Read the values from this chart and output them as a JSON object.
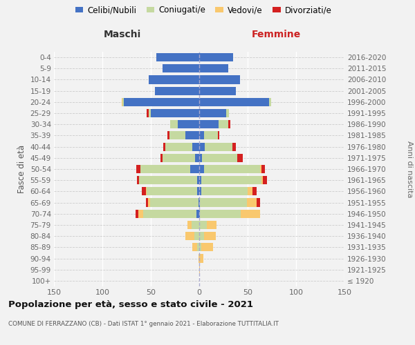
{
  "age_groups": [
    "100+",
    "95-99",
    "90-94",
    "85-89",
    "80-84",
    "75-79",
    "70-74",
    "65-69",
    "60-64",
    "55-59",
    "50-54",
    "45-49",
    "40-44",
    "35-39",
    "30-34",
    "25-29",
    "20-24",
    "15-19",
    "10-14",
    "5-9",
    "0-4"
  ],
  "birth_years": [
    "≤ 1920",
    "1921-1925",
    "1926-1930",
    "1931-1935",
    "1936-1940",
    "1941-1945",
    "1946-1950",
    "1951-1955",
    "1956-1960",
    "1961-1965",
    "1966-1970",
    "1971-1975",
    "1976-1980",
    "1981-1985",
    "1986-1990",
    "1991-1995",
    "1996-2000",
    "2001-2005",
    "2006-2010",
    "2011-2015",
    "2016-2020"
  ],
  "maschi_celibi": [
    0,
    0,
    0,
    0,
    0,
    0,
    3,
    1,
    2,
    2,
    9,
    4,
    7,
    14,
    22,
    50,
    78,
    46,
    52,
    38,
    44
  ],
  "maschi_coniugati": [
    0,
    0,
    0,
    2,
    5,
    8,
    55,
    50,
    52,
    60,
    52,
    34,
    28,
    17,
    8,
    2,
    1,
    0,
    0,
    0,
    0
  ],
  "maschi_vedovi": [
    0,
    0,
    1,
    5,
    9,
    4,
    5,
    2,
    1,
    0,
    0,
    0,
    0,
    0,
    0,
    0,
    1,
    0,
    0,
    0,
    0
  ],
  "maschi_divorziati": [
    0,
    0,
    0,
    0,
    0,
    0,
    3,
    2,
    4,
    2,
    4,
    2,
    2,
    2,
    0,
    2,
    0,
    0,
    0,
    0,
    0
  ],
  "femmine_nubili": [
    0,
    0,
    0,
    0,
    0,
    0,
    1,
    1,
    2,
    2,
    5,
    3,
    6,
    5,
    20,
    28,
    72,
    38,
    42,
    30,
    35
  ],
  "femmine_coniugate": [
    0,
    0,
    0,
    2,
    5,
    8,
    42,
    48,
    48,
    62,
    58,
    36,
    28,
    14,
    10,
    3,
    2,
    0,
    0,
    0,
    0
  ],
  "femmine_vedove": [
    0,
    1,
    4,
    12,
    12,
    10,
    20,
    10,
    5,
    2,
    1,
    0,
    0,
    0,
    0,
    0,
    0,
    0,
    0,
    0,
    0
  ],
  "femmine_divorziate": [
    0,
    0,
    0,
    0,
    0,
    0,
    0,
    4,
    4,
    4,
    4,
    6,
    4,
    2,
    2,
    0,
    0,
    0,
    0,
    0,
    0
  ],
  "color_celibi": "#4472c4",
  "color_coniugati": "#c5d9a0",
  "color_vedovi": "#f9c86e",
  "color_divorziati": "#d42020",
  "xlim": 150,
  "bg_color": "#f2f2f2",
  "title": "Popolazione per età, sesso e stato civile - 2021",
  "subtitle": "COMUNE DI FERRAZZANO (CB) - Dati ISTAT 1° gennaio 2021 - Elaborazione TUTTITALIA.IT",
  "ylabel_left": "Fasce di età",
  "ylabel_right": "Anni di nascita",
  "label_maschi": "Maschi",
  "label_femmine": "Femmine",
  "legend_labels": [
    "Celibi/Nubili",
    "Coniugati/e",
    "Vedovi/e",
    "Divorziati/e"
  ]
}
